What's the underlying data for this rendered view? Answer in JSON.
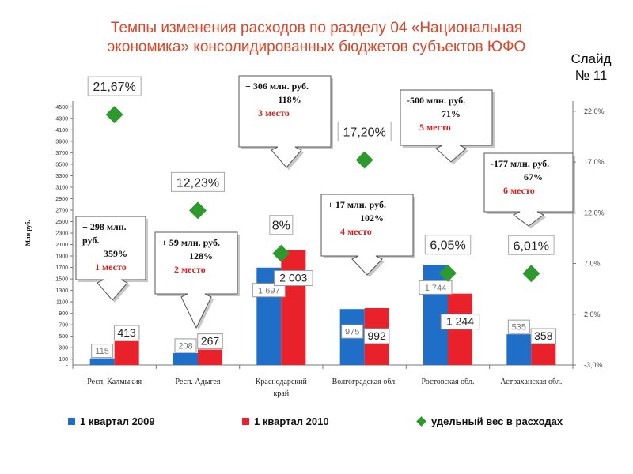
{
  "title_line1": "Темпы изменения расходов по разделу 04 «Национальная",
  "title_line2": "экономика» консолидированных бюджетов субъектов ЮФО",
  "slide_label_1": "Слайд",
  "slide_label_2": "№ 11",
  "colors": {
    "series2009": "#1f6fc8",
    "series2010": "#e8212a",
    "share": "#2e9a2e",
    "title": "#d9472b",
    "place": "#d62020"
  },
  "chart_data": {
    "type": "bar",
    "categories": [
      "Респ. Калмыкия",
      "Респ. Адыгея",
      "Краснодарский край",
      "Волгоградская обл.",
      "Ростовская обл.",
      "Астраханская обл."
    ],
    "category_lines": [
      [
        "Респ. Калмыкия"
      ],
      [
        "Респ. Адыгея"
      ],
      [
        "Краснодарский",
        "край"
      ],
      [
        "Волгоградская обл."
      ],
      [
        "Ростовская обл."
      ],
      [
        "Астраханская обл."
      ]
    ],
    "ylabel": "Млн руб.",
    "ylim": [
      0,
      4600
    ],
    "yticks": [
      100,
      300,
      500,
      700,
      900,
      1100,
      1300,
      1500,
      1700,
      1900,
      2100,
      2300,
      2500,
      2700,
      2900,
      3100,
      3300,
      3500,
      3700,
      3900,
      4100,
      4300,
      4500
    ],
    "y2lim": [
      -3,
      23
    ],
    "y2ticks": [
      -3,
      2,
      7,
      12,
      17,
      22
    ],
    "y2tick_labels": [
      "-3,0%",
      "2,0%",
      "7,0%",
      "12,0%",
      "17,0%",
      "22,0%"
    ],
    "series": [
      {
        "name": "1 квартал 2009",
        "values": [
          115,
          208,
          1697,
          975,
          1744,
          535
        ],
        "labels": [
          "115",
          "208",
          "1 697",
          "975",
          "1 744",
          "535"
        ]
      },
      {
        "name": "1 квартал 2010",
        "values": [
          413,
          267,
          2003,
          992,
          1244,
          358
        ],
        "labels": [
          "413",
          "267",
          "2 003",
          "992",
          "1 244",
          "358"
        ]
      },
      {
        "name": "удельный вес в расходах",
        "type": "scatter",
        "axis": "right",
        "values": [
          21.67,
          12.23,
          8.0,
          17.2,
          6.05,
          6.01
        ],
        "labels": [
          "21,67%",
          "12,23%",
          "8%",
          "17,20%",
          "6,05%",
          "6,01%"
        ]
      }
    ],
    "annotations": [
      {
        "lines": [
          "+ 298 млн.",
          "руб.",
          "359%"
        ],
        "place": "1 место"
      },
      {
        "lines": [
          "+ 59 млн. руб.",
          "128%"
        ],
        "place": "2 место"
      },
      {
        "lines": [
          "+ 306 млн. руб.",
          "118%"
        ],
        "place": "3 место"
      },
      {
        "lines": [
          "+ 17 млн. руб.",
          "102%"
        ],
        "place": "4 место"
      },
      {
        "lines": [
          "-500 млн. руб.",
          "71%"
        ],
        "place": "5 место"
      },
      {
        "lines": [
          "-177 млн. руб.",
          "67%"
        ],
        "place": "6 место"
      }
    ]
  }
}
